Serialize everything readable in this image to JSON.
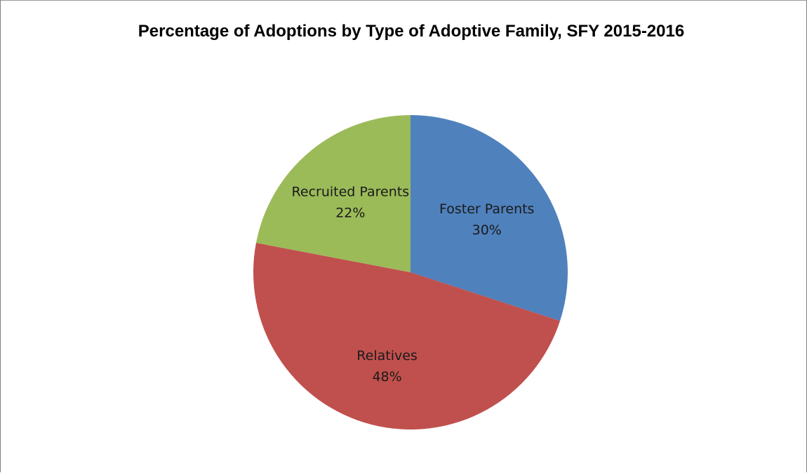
{
  "chart_data": {
    "type": "pie",
    "title": "Percentage of Adoptions by Type of Adoptive Family, SFY 2015-2016",
    "slices": [
      {
        "label": "Foster Parents",
        "value": 30,
        "value_label": "30%",
        "color": "#4f81bd"
      },
      {
        "label": "Relatives",
        "value": 48,
        "value_label": "48%",
        "color": "#c0504d"
      },
      {
        "label": "Recruited Parents",
        "value": 22,
        "value_label": "22%",
        "color": "#9bbb59"
      }
    ],
    "start_angle_deg": 0,
    "direction": "clockwise",
    "legend": "none"
  }
}
